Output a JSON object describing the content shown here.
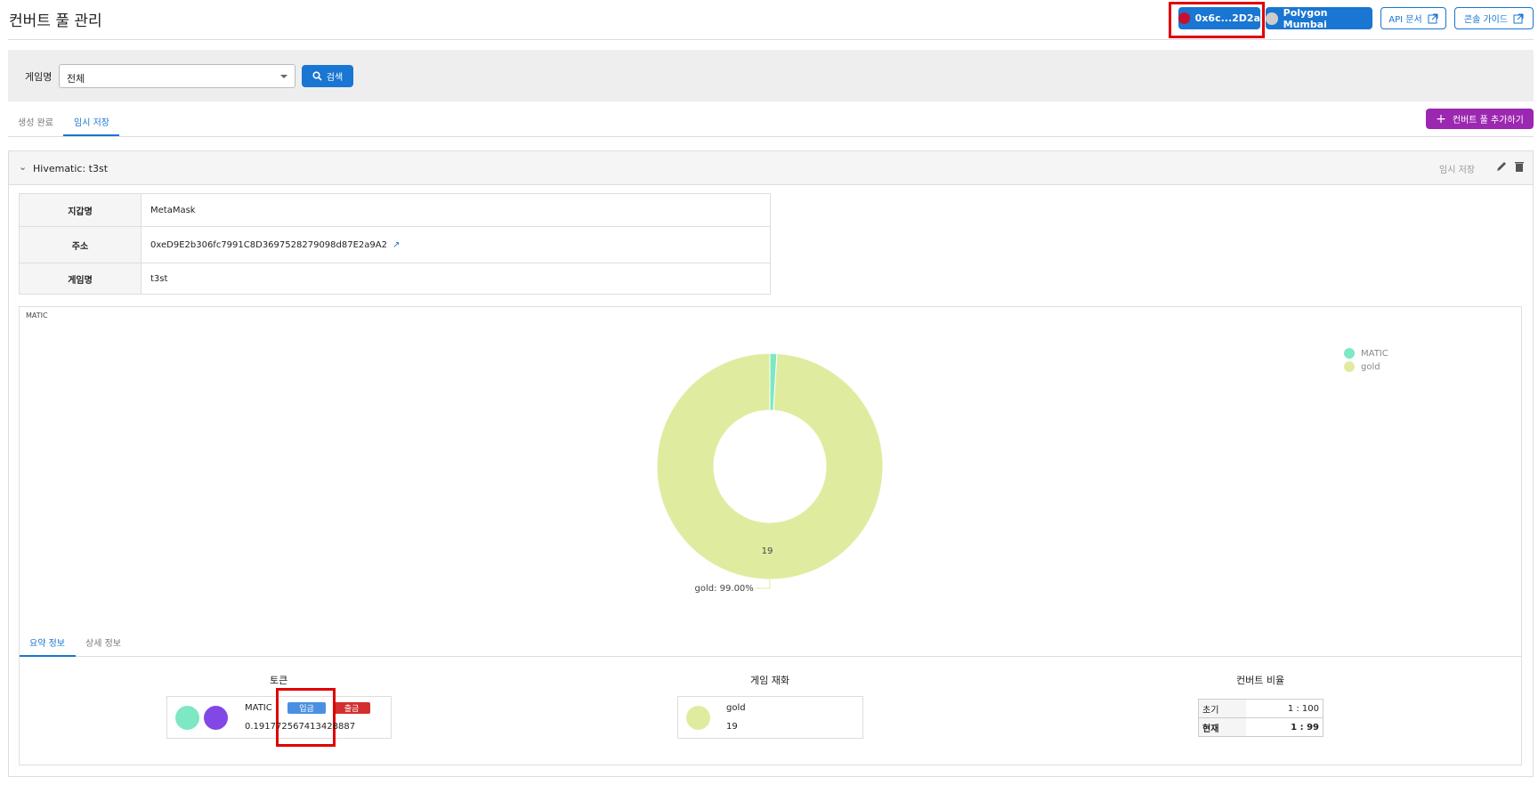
{
  "header": {
    "title": "컨버트 풀 관리",
    "wallet": "0x6c...2D2a",
    "network": "Polygon Mumbai",
    "api_docs": "API 문서",
    "guide": "콘솔 가이드"
  },
  "search": {
    "label": "게임명",
    "selected": "전체",
    "button": "검색"
  },
  "tabs": [
    "생성 완료",
    "임시 저장"
  ],
  "add_button": "컨버트 풀 추가하기",
  "pool": {
    "title": "Hivematic: t3st",
    "status": "임시 저장",
    "info": [
      [
        "지갑명",
        "MetaMask"
      ],
      [
        "주소",
        "0xeD9E2b306fc7991C8D3697528279098d87E2a9A2"
      ],
      [
        "게임명",
        "t3st"
      ]
    ]
  },
  "chart_data": {
    "type": "pie",
    "title": "MATIC",
    "categories": [
      "MATIC",
      "gold"
    ],
    "values": [
      0.19177256741342888,
      19
    ],
    "colors": [
      "#7de8c3",
      "#dfeca0"
    ],
    "annotation": "gold: 99.00%",
    "legend": "top-right"
  },
  "summary": {
    "tabs": [
      "요약 정보",
      "상세 정보"
    ],
    "token": {
      "heading": "토큰",
      "name": "MATIC",
      "deposit": "입금",
      "withdraw": "출금",
      "amount": "0.191772567413428887"
    },
    "currency": {
      "heading": "게임 재화",
      "name": "gold",
      "amount": "19"
    },
    "ratio": {
      "heading": "컨버트 비율",
      "rows": [
        [
          "초기",
          "1 : 100"
        ],
        [
          "현재",
          "1 : 99"
        ]
      ]
    }
  }
}
